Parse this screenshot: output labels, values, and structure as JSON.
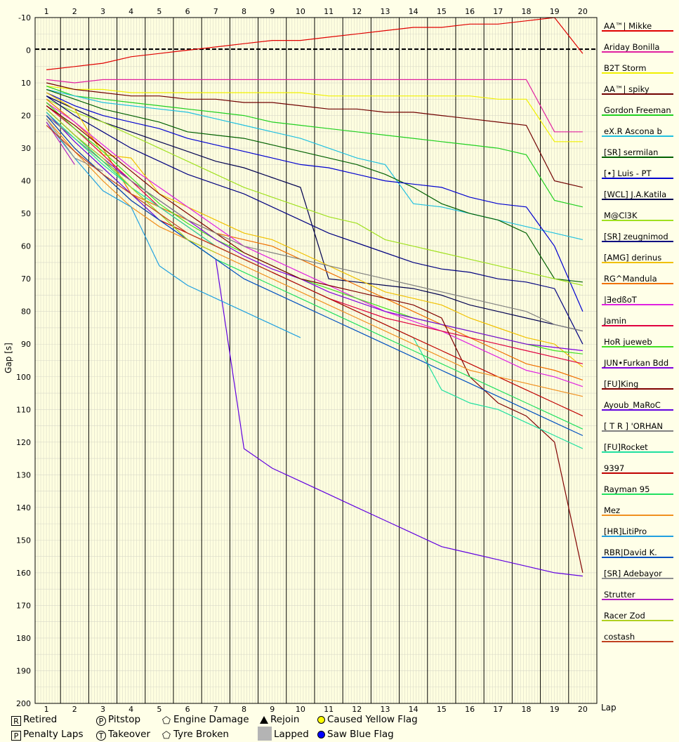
{
  "chart_data": {
    "type": "line",
    "ylabel": "Gap [s]",
    "xlabel": "Lap",
    "x_ticks": [
      1,
      2,
      3,
      4,
      5,
      6,
      7,
      8,
      9,
      10,
      11,
      12,
      13,
      14,
      15,
      16,
      17,
      18,
      19,
      20
    ],
    "y_ticks": [
      -10,
      0,
      10,
      20,
      30,
      40,
      50,
      60,
      70,
      80,
      90,
      100,
      110,
      120,
      130,
      140,
      150,
      160,
      170,
      180,
      190,
      200
    ],
    "ylim": [
      -10,
      200
    ],
    "y_inverted": true,
    "xlim": [
      0.6,
      20.5
    ],
    "leader_line_gap": 0,
    "grid": true,
    "legend_position": "right",
    "series": [
      {
        "name": "AA™| Mikke",
        "color": "#e00000",
        "values": [
          6,
          5,
          4,
          2,
          1,
          0,
          -1,
          -2,
          -3,
          -3,
          -4,
          -5,
          -6,
          -7,
          -7,
          -8,
          -8,
          -9,
          -10,
          1
        ]
      },
      {
        "name": "Ariday Bonilla",
        "color": "#e020a0",
        "values": [
          9,
          10,
          9,
          9,
          9,
          9,
          9,
          9,
          9,
          9,
          9,
          9,
          9,
          9,
          9,
          9,
          9,
          9,
          25,
          25
        ]
      },
      {
        "name": "B2T Storm",
        "color": "#f0f000",
        "values": [
          11,
          12,
          12,
          13,
          13,
          13,
          13,
          13,
          13,
          13,
          14,
          14,
          14,
          14,
          14,
          14,
          15,
          15,
          28,
          28
        ]
      },
      {
        "name": "AA™| spiky",
        "color": "#700000",
        "values": [
          10,
          12,
          13,
          14,
          14,
          15,
          15,
          16,
          16,
          17,
          18,
          18,
          19,
          19,
          20,
          21,
          22,
          23,
          40,
          42
        ]
      },
      {
        "name": "Gordon Freeman",
        "color": "#20d020",
        "values": [
          11,
          14,
          15,
          16,
          17,
          18,
          19,
          20,
          22,
          23,
          24,
          25,
          26,
          27,
          28,
          29,
          30,
          32,
          46,
          48
        ]
      },
      {
        "name": "eX.R Ascona b",
        "color": "#20c0e0",
        "values": [
          12,
          14,
          16,
          17,
          18,
          19,
          21,
          23,
          25,
          27,
          30,
          33,
          35,
          47,
          48,
          50,
          52,
          54,
          56,
          58
        ]
      },
      {
        "name": "[SR] sermilan",
        "color": "#006000",
        "values": [
          12,
          15,
          18,
          20,
          22,
          25,
          26,
          27,
          29,
          31,
          33,
          35,
          38,
          42,
          47,
          50,
          52,
          56,
          70,
          71
        ]
      },
      {
        "name": "[•] Luis - PT",
        "color": "#0000d0",
        "values": [
          13,
          17,
          20,
          22,
          24,
          27,
          29,
          31,
          33,
          35,
          36,
          38,
          40,
          41,
          42,
          45,
          47,
          48,
          60,
          80
        ]
      },
      {
        "name": "[WCL] J.A.Katila",
        "color": "#000050",
        "values": [
          14,
          18,
          22,
          25,
          28,
          31,
          34,
          36,
          39,
          42,
          70,
          71,
          72,
          73,
          75,
          78,
          80,
          82,
          84,
          86
        ]
      },
      {
        "name": "M@Cl3K",
        "color": "#a0e020",
        "values": [
          15,
          19,
          22,
          26,
          30,
          34,
          38,
          42,
          45,
          48,
          51,
          53,
          58,
          60,
          62,
          64,
          66,
          68,
          70,
          72
        ]
      },
      {
        "name": "[SR] zeugnimod",
        "color": "#000080",
        "values": [
          14,
          20,
          25,
          30,
          34,
          38,
          41,
          44,
          48,
          52,
          56,
          59,
          62,
          65,
          67,
          68,
          70,
          71,
          73,
          90
        ]
      },
      {
        "name": "[AMG] derinus",
        "color": "#f0c000",
        "values": [
          13,
          18,
          32,
          33,
          44,
          48,
          52,
          56,
          58,
          62,
          66,
          70,
          74,
          76,
          78,
          82,
          85,
          88,
          90,
          97
        ]
      },
      {
        "name": "RG^Mandula",
        "color": "#f07000",
        "values": [
          15,
          22,
          30,
          44,
          48,
          52,
          56,
          58,
          60,
          64,
          68,
          72,
          76,
          80,
          84,
          88,
          92,
          96,
          98,
          101
        ]
      },
      {
        "name": "|ƎedßoT",
        "color": "#e020e0",
        "values": [
          16,
          22,
          29,
          36,
          42,
          48,
          54,
          60,
          64,
          68,
          72,
          76,
          80,
          83,
          86,
          90,
          94,
          98,
          100,
          103
        ]
      },
      {
        "name": "Jamin",
        "color": "#e00040",
        "values": [
          17,
          24,
          32,
          40,
          48,
          54,
          60,
          64,
          68,
          72,
          76,
          79,
          82,
          84,
          86,
          88,
          90,
          92,
          94,
          96
        ]
      },
      {
        "name": "HoR jueweb",
        "color": "#40e020",
        "values": [
          16,
          24,
          31,
          39,
          47,
          53,
          58,
          62,
          66,
          70,
          73,
          76,
          79,
          82,
          84,
          86,
          88,
          90,
          92,
          93
        ]
      },
      {
        "name": "JUN•Furkan Bdd",
        "color": "#8000e0",
        "values": [
          18,
          26,
          33,
          40,
          46,
          52,
          58,
          63,
          67,
          70,
          74,
          77,
          80,
          82,
          84,
          86,
          88,
          90,
          91,
          92
        ]
      },
      {
        "name": "[FU]King",
        "color": "#800000",
        "values": [
          17,
          23,
          30,
          37,
          44,
          50,
          56,
          62,
          66,
          70,
          72,
          74,
          76,
          78,
          82,
          100,
          108,
          112,
          120,
          160
        ]
      },
      {
        "name": "Ayoub_MaRoC",
        "color": "#6000e0",
        "values": [
          19,
          28,
          36,
          44,
          52,
          58,
          64,
          122,
          128,
          132,
          136,
          140,
          144,
          148,
          152,
          154,
          156,
          158,
          160,
          161
        ]
      },
      {
        "name": "[ T R ] 'ORHAN",
        "color": "#808080",
        "values": [
          20,
          27,
          34,
          40,
          46,
          52,
          56,
          60,
          62,
          64,
          66,
          68,
          70,
          72,
          74,
          76,
          78,
          80,
          84,
          86
        ]
      },
      {
        "name": "[FU]Rocket",
        "color": "#20e0a0",
        "values": [
          19,
          27,
          35,
          42,
          48,
          54,
          60,
          64,
          68,
          72,
          76,
          80,
          84,
          88,
          104,
          108,
          110,
          114,
          118,
          122
        ]
      },
      {
        "name": "9397",
        "color": "#c00000",
        "values": [
          20,
          30,
          38,
          46,
          52,
          56,
          60,
          64,
          68,
          72,
          76,
          80,
          84,
          88,
          92,
          96,
          100,
          104,
          108,
          112
        ]
      },
      {
        "name": "Rayman 95",
        "color": "#20e060",
        "values": [
          18,
          26,
          34,
          42,
          50,
          58,
          64,
          68,
          72,
          76,
          80,
          84,
          88,
          92,
          96,
          100,
          104,
          108,
          112,
          116
        ]
      },
      {
        "name": "Mez",
        "color": "#f09020",
        "values": [
          21,
          31,
          40,
          48,
          54,
          58,
          62,
          66,
          70,
          74,
          78,
          82,
          86,
          90,
          94,
          98,
          100,
          102,
          104,
          106
        ]
      },
      {
        "name": "[HR]LitiPro",
        "color": "#20a0e0",
        "values": [
          22,
          33,
          43,
          48,
          66,
          72,
          76,
          80,
          84,
          88,
          null,
          null,
          null,
          null,
          null,
          null,
          null,
          null,
          null,
          null
        ]
      },
      {
        "name": "RBR|David K.",
        "color": "#0050c0",
        "values": [
          20,
          30,
          38,
          46,
          52,
          58,
          64,
          70,
          74,
          78,
          82,
          86,
          90,
          94,
          98,
          102,
          106,
          110,
          114,
          118
        ]
      },
      {
        "name": "[SR] Adebayor",
        "color": "#909090",
        "values": [
          21,
          33,
          37,
          null,
          null,
          null,
          null,
          null,
          null,
          null,
          null,
          null,
          null,
          null,
          null,
          null,
          null,
          null,
          null,
          null
        ]
      },
      {
        "name": "Strutter",
        "color": "#b020c0",
        "values": [
          22,
          35,
          null,
          null,
          null,
          null,
          null,
          null,
          null,
          null,
          null,
          null,
          null,
          null,
          null,
          null,
          null,
          null,
          null,
          null
        ]
      },
      {
        "name": "Racer Zod",
        "color": "#b0d020",
        "values": [
          18,
          26,
          33,
          42,
          50,
          58,
          62,
          null,
          null,
          null,
          null,
          null,
          null,
          null,
          null,
          null,
          null,
          null,
          null,
          null
        ]
      },
      {
        "name": "costash",
        "color": "#c04020",
        "values": [
          23,
          31,
          38,
          44,
          50,
          56,
          60,
          64,
          68,
          null,
          null,
          null,
          null,
          null,
          null,
          null,
          null,
          null,
          null,
          null
        ]
      }
    ]
  },
  "legend": {
    "retired": "Retired",
    "penalty_laps": "Penalty Laps",
    "pitstop": "Pitstop",
    "takeover": "Takeover",
    "engine_damage": "Engine Damage",
    "tyre_broken": "Tyre Broken",
    "rejoin": "Rejoin",
    "lapped": "Lapped",
    "caused_yellow": "Caused Yellow Flag",
    "saw_blue": "Saw Blue Flag",
    "retired_icon_text": "R",
    "penalty_icon_text": "P",
    "pitstop_icon_text": "P",
    "takeover_icon_text": "T",
    "engine_icon": "pentagon-E-icon",
    "tyre_icon": "pentagon-icon"
  }
}
